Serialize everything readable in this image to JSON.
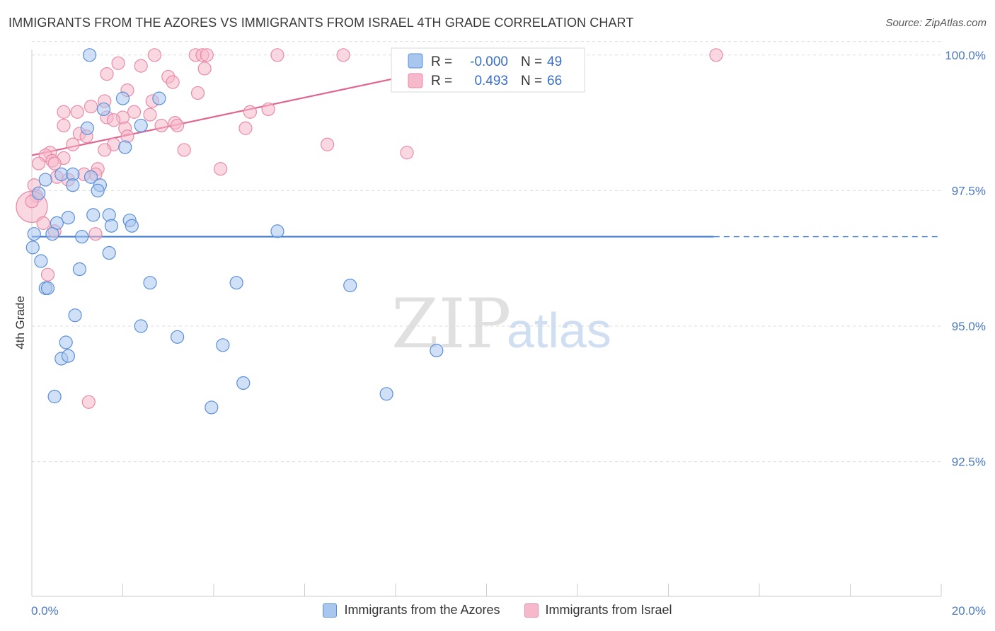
{
  "header": {
    "title": "IMMIGRANTS FROM THE AZORES VS IMMIGRANTS FROM ISRAEL 4TH GRADE CORRELATION CHART",
    "source": "Source: ZipAtlas.com"
  },
  "watermark": {
    "zip": "ZIP",
    "atlas": "atlas"
  },
  "legend_box": {
    "rows": [
      {
        "r_label": "R =",
        "r_value": "-0.000",
        "n_label": "N =",
        "n_value": "49"
      },
      {
        "r_label": "R =",
        "r_value": "0.493",
        "n_label": "N =",
        "n_value": "66"
      }
    ]
  },
  "bottom_legend": {
    "items": [
      {
        "label": "Immigrants from the Azores"
      },
      {
        "label": "Immigrants from Israel"
      }
    ]
  },
  "colors": {
    "blue_fill": "#a9c6ee",
    "blue_stroke": "#5b8fd8",
    "blue_line": "#3e7bd1",
    "pink_fill": "#f6b8cb",
    "pink_stroke": "#e98aa8",
    "pink_line": "#e0668f",
    "tick_text": "#4a78c2",
    "grid": "#dddddd"
  },
  "chart_data": {
    "type": "scatter",
    "title": "IMMIGRANTS FROM THE AZORES VS IMMIGRANTS FROM ISRAEL 4TH GRADE CORRELATION CHART",
    "ylabel": "4th Grade",
    "xlabel": "",
    "xlim": [
      0,
      20
    ],
    "ylim": [
      90.0,
      100.4
    ],
    "x_tick_labels": [
      "0.0%",
      "20.0%"
    ],
    "y_ticks": [
      92.5,
      95.0,
      97.5,
      100.0
    ],
    "y_tick_labels": [
      "92.5%",
      "95.0%",
      "97.5%",
      "100.0%"
    ],
    "grid": true,
    "legend_position": "top-center",
    "series": [
      {
        "name": "Immigrants from the Azores",
        "r": -0.0,
        "n": 49,
        "trend": {
          "x0": 0.0,
          "y0": 96.65,
          "x1": 15.0,
          "y1": 96.65,
          "dashed_to": 20.0
        },
        "points": [
          [
            1.27,
            100.0
          ],
          [
            9.0,
            100.0
          ],
          [
            11.2,
            100.0
          ],
          [
            2.0,
            99.2
          ],
          [
            2.8,
            99.2
          ],
          [
            1.58,
            99.0
          ],
          [
            1.22,
            98.65
          ],
          [
            2.4,
            98.7
          ],
          [
            2.05,
            98.3
          ],
          [
            0.3,
            97.7
          ],
          [
            0.65,
            97.8
          ],
          [
            0.9,
            97.8
          ],
          [
            1.3,
            97.75
          ],
          [
            0.9,
            97.6
          ],
          [
            1.5,
            97.6
          ],
          [
            0.15,
            97.45
          ],
          [
            1.45,
            97.5
          ],
          [
            0.8,
            97.0
          ],
          [
            1.35,
            97.05
          ],
          [
            1.7,
            97.05
          ],
          [
            2.15,
            96.95
          ],
          [
            0.55,
            96.9
          ],
          [
            1.75,
            96.85
          ],
          [
            2.2,
            96.85
          ],
          [
            0.05,
            96.7
          ],
          [
            0.45,
            96.7
          ],
          [
            1.1,
            96.65
          ],
          [
            5.4,
            96.75
          ],
          [
            0.02,
            96.45
          ],
          [
            1.7,
            96.35
          ],
          [
            0.2,
            96.2
          ],
          [
            1.05,
            96.05
          ],
          [
            0.3,
            95.7
          ],
          [
            0.35,
            95.7
          ],
          [
            2.6,
            95.8
          ],
          [
            4.5,
            95.8
          ],
          [
            7.0,
            95.75
          ],
          [
            0.95,
            95.2
          ],
          [
            2.4,
            95.0
          ],
          [
            3.2,
            94.8
          ],
          [
            0.75,
            94.7
          ],
          [
            4.2,
            94.65
          ],
          [
            0.65,
            94.4
          ],
          [
            0.8,
            94.45
          ],
          [
            8.9,
            94.55
          ],
          [
            4.65,
            93.95
          ],
          [
            0.5,
            93.7
          ],
          [
            7.8,
            93.75
          ],
          [
            3.95,
            93.5
          ]
        ]
      },
      {
        "name": "Immigrants from Israel",
        "r": 0.493,
        "n": 66,
        "trend": {
          "x0": 0.0,
          "y0": 98.15,
          "x1": 10.7,
          "y1": 100.05
        },
        "points": [
          [
            2.7,
            100.0
          ],
          [
            3.6,
            100.0
          ],
          [
            3.75,
            100.0
          ],
          [
            3.85,
            100.0
          ],
          [
            5.4,
            100.0
          ],
          [
            6.85,
            100.0
          ],
          [
            10.2,
            100.0
          ],
          [
            11.6,
            100.0
          ],
          [
            11.8,
            100.0
          ],
          [
            15.05,
            100.0
          ],
          [
            1.9,
            99.85
          ],
          [
            2.4,
            99.8
          ],
          [
            3.8,
            99.75
          ],
          [
            1.65,
            99.65
          ],
          [
            3.0,
            99.6
          ],
          [
            3.1,
            99.5
          ],
          [
            2.1,
            99.35
          ],
          [
            3.65,
            99.3
          ],
          [
            2.65,
            99.15
          ],
          [
            5.2,
            99.0
          ],
          [
            1.6,
            99.15
          ],
          [
            0.7,
            98.95
          ],
          [
            1.0,
            98.95
          ],
          [
            1.3,
            99.05
          ],
          [
            2.25,
            98.95
          ],
          [
            2.6,
            98.9
          ],
          [
            4.8,
            98.95
          ],
          [
            1.65,
            98.85
          ],
          [
            2.0,
            98.85
          ],
          [
            1.8,
            98.8
          ],
          [
            3.15,
            98.75
          ],
          [
            0.7,
            98.7
          ],
          [
            2.85,
            98.7
          ],
          [
            3.2,
            98.7
          ],
          [
            2.05,
            98.65
          ],
          [
            4.7,
            98.65
          ],
          [
            1.05,
            98.55
          ],
          [
            1.2,
            98.5
          ],
          [
            2.1,
            98.5
          ],
          [
            0.9,
            98.35
          ],
          [
            1.8,
            98.35
          ],
          [
            6.5,
            98.35
          ],
          [
            1.6,
            98.25
          ],
          [
            3.35,
            98.25
          ],
          [
            0.4,
            98.2
          ],
          [
            8.25,
            98.2
          ],
          [
            0.3,
            98.15
          ],
          [
            0.7,
            98.1
          ],
          [
            0.45,
            98.05
          ],
          [
            0.5,
            98.0
          ],
          [
            0.15,
            98.0
          ],
          [
            1.45,
            97.9
          ],
          [
            4.15,
            97.9
          ],
          [
            1.4,
            97.8
          ],
          [
            0.55,
            97.75
          ],
          [
            1.15,
            97.8
          ],
          [
            0.8,
            97.7
          ],
          [
            0.05,
            97.6
          ],
          [
            0.1,
            97.4
          ],
          [
            0.0,
            97.2
          ],
          [
            0.25,
            96.9
          ],
          [
            1.4,
            96.7
          ],
          [
            0.5,
            96.75
          ],
          [
            0.35,
            95.95
          ],
          [
            1.25,
            93.6
          ],
          [
            0.0,
            97.3
          ]
        ]
      }
    ]
  }
}
